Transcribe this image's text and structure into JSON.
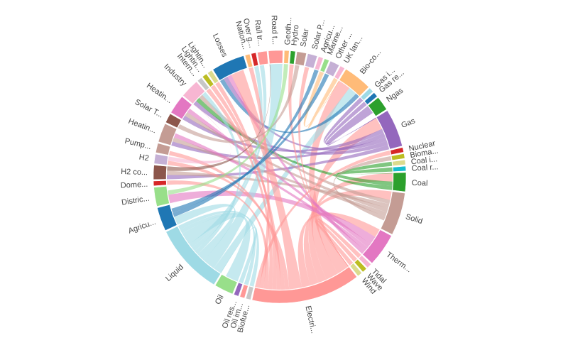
{
  "chart_data": {
    "type": "chord",
    "title": "",
    "groups": [
      {
        "label": "Road t...",
        "value": 3,
        "color": "#ff9896"
      },
      {
        "label": "Geoth...",
        "value": 1,
        "color": "#ffbb78"
      },
      {
        "label": "Hydro",
        "value": 1,
        "color": "#2ca02c"
      },
      {
        "label": "Solar",
        "value": 2,
        "color": "#c49c94"
      },
      {
        "label": "Solar P...",
        "value": 2,
        "color": "#c5b0d5"
      },
      {
        "label": "Agricu...",
        "value": 1,
        "color": "#f7b6d2"
      },
      {
        "label": "Marine...",
        "value": 1,
        "color": "#98df8a"
      },
      {
        "label": "Other ...",
        "value": 2,
        "color": "#c5b0d5"
      },
      {
        "label": "UK lan...",
        "value": 1,
        "color": "#f7b6d2"
      },
      {
        "label": "Bio-co...",
        "value": 6,
        "color": "#ffbb78"
      },
      {
        "label": "Gas i...",
        "value": 1,
        "color": "#9edae5"
      },
      {
        "label": "Gas re...",
        "value": 1,
        "color": "#1f77b4"
      },
      {
        "label": "Ngas",
        "value": 3,
        "color": "#2ca02c"
      },
      {
        "label": "Gas",
        "value": 8,
        "color": "#9467bd"
      },
      {
        "label": "Nuclear",
        "value": 1,
        "color": "#d62728"
      },
      {
        "label": "Bioma...",
        "value": 1,
        "color": "#bcbd22"
      },
      {
        "label": "Coal i...",
        "value": 1,
        "color": "#dbdb8d"
      },
      {
        "label": "Coal r...",
        "value": 1,
        "color": "#17becf"
      },
      {
        "label": "Coal",
        "value": 4,
        "color": "#2ca02c"
      },
      {
        "label": "Solid",
        "value": 9,
        "color": "#c49c94"
      },
      {
        "label": "Therm...",
        "value": 7,
        "color": "#e377c2"
      },
      {
        "label": "Tidal",
        "value": 1,
        "color": "#f7b6d2"
      },
      {
        "label": "Wave",
        "value": 1,
        "color": "#bcbd22"
      },
      {
        "label": "Wind",
        "value": 1,
        "color": "#dbdb8d"
      },
      {
        "label": "Electri...",
        "value": 23,
        "color": "#ff9896"
      },
      {
        "label": "Biofue...",
        "value": 1,
        "color": "#c7c7c7"
      },
      {
        "label": "Oil im...",
        "value": 1,
        "color": "#ff9896"
      },
      {
        "label": "Oil res...",
        "value": 1,
        "color": "#9467bd"
      },
      {
        "label": "Oil",
        "value": 4,
        "color": "#98df8a"
      },
      {
        "label": "Liquid",
        "value": 15,
        "color": "#9edae5"
      },
      {
        "label": "Agricu...",
        "value": 5,
        "color": "#1f77b4"
      },
      {
        "label": "Distric...",
        "value": 4,
        "color": "#98df8a"
      },
      {
        "label": "Dome...",
        "value": 1,
        "color": "#d62728"
      },
      {
        "label": "H2 co...",
        "value": 3,
        "color": "#8c564b"
      },
      {
        "label": "H2",
        "value": 2,
        "color": "#c5b0d5"
      },
      {
        "label": "Pump...",
        "value": 2,
        "color": "#c49c94"
      },
      {
        "label": "Heatin...",
        "value": 4,
        "color": "#c49c94"
      },
      {
        "label": "Solar T...",
        "value": 2,
        "color": "#8c564b"
      },
      {
        "label": "Heatin...",
        "value": 4,
        "color": "#e377c2"
      },
      {
        "label": "Industry",
        "value": 4,
        "color": "#f7b6d2"
      },
      {
        "label": "Intern...",
        "value": 1,
        "color": "#c7c7c7"
      },
      {
        "label": "Lightin...",
        "value": 1,
        "color": "#bcbd22"
      },
      {
        "label": "Lightin...",
        "value": 1,
        "color": "#dbdb8d"
      },
      {
        "label": "Losses",
        "value": 7,
        "color": "#1f77b4"
      },
      {
        "label": "Nation...",
        "value": 1,
        "color": "#ffbb78"
      },
      {
        "label": "Over g...",
        "value": 1,
        "color": "#d62728"
      },
      {
        "label": "Rail tr...",
        "value": 2,
        "color": "#ff9896"
      }
    ],
    "links": [
      [
        9,
        24,
        3
      ],
      [
        9,
        29,
        2
      ],
      [
        9,
        43,
        1
      ],
      [
        13,
        24,
        3
      ],
      [
        13,
        38,
        1
      ],
      [
        13,
        36,
        1
      ],
      [
        13,
        43,
        1
      ],
      [
        13,
        39,
        1
      ],
      [
        13,
        33,
        1
      ],
      [
        12,
        13,
        2
      ],
      [
        10,
        13,
        1
      ],
      [
        11,
        13,
        1
      ],
      [
        18,
        24,
        2
      ],
      [
        18,
        39,
        1
      ],
      [
        16,
        18,
        1
      ],
      [
        17,
        18,
        1
      ],
      [
        19,
        24,
        2
      ],
      [
        19,
        39,
        1
      ],
      [
        19,
        33,
        1
      ],
      [
        19,
        38,
        1
      ],
      [
        19,
        36,
        1
      ],
      [
        15,
        19,
        1
      ],
      [
        20,
        24,
        2
      ],
      [
        20,
        31,
        2
      ],
      [
        20,
        38,
        1
      ],
      [
        20,
        36,
        1
      ],
      [
        20,
        43,
        1
      ],
      [
        29,
        0,
        3
      ],
      [
        29,
        30,
        2
      ],
      [
        29,
        39,
        1
      ],
      [
        29,
        46,
        1
      ],
      [
        29,
        45,
        1
      ],
      [
        28,
        29,
        3
      ],
      [
        25,
        29,
        1
      ],
      [
        26,
        29,
        1
      ],
      [
        27,
        29,
        1
      ],
      [
        24,
        43,
        3
      ],
      [
        24,
        34,
        1
      ],
      [
        24,
        35,
        1
      ],
      [
        24,
        41,
        1
      ],
      [
        24,
        42,
        1
      ],
      [
        24,
        40,
        1
      ],
      [
        24,
        32,
        1
      ],
      [
        24,
        44,
        1
      ],
      [
        14,
        24,
        1
      ],
      [
        21,
        24,
        1
      ],
      [
        22,
        24,
        1
      ],
      [
        23,
        24,
        1
      ],
      [
        2,
        24,
        1
      ],
      [
        3,
        37,
        1
      ],
      [
        4,
        24,
        1
      ],
      [
        1,
        31,
        1
      ],
      [
        5,
        30,
        1
      ],
      [
        6,
        9,
        1
      ],
      [
        7,
        30,
        1
      ],
      [
        8,
        9,
        1
      ],
      [
        34,
        39,
        1
      ],
      [
        33,
        0,
        1
      ]
    ]
  }
}
